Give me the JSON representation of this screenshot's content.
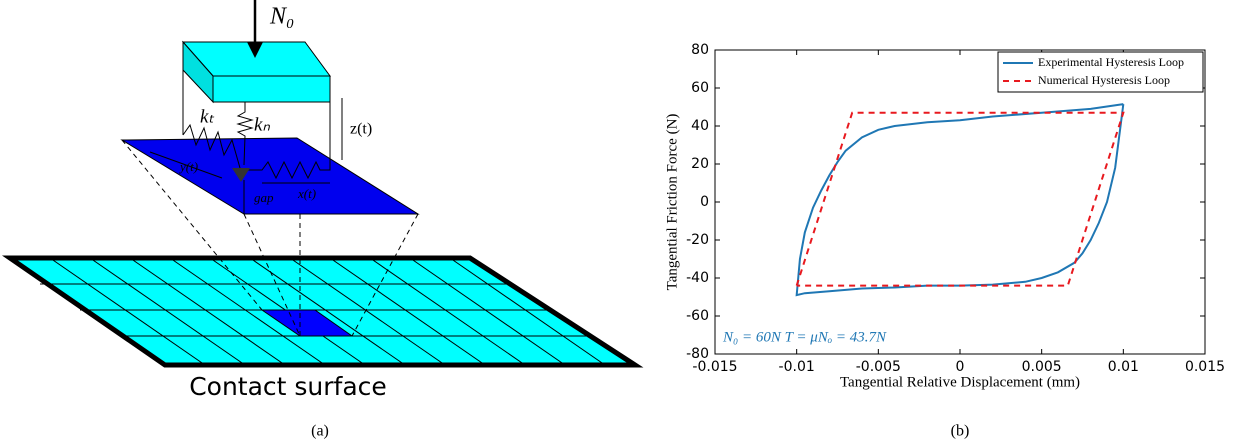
{
  "diagram": {
    "force_label": "N₀",
    "kt_label": "kₜ",
    "kn_label": "kₙ",
    "z_label": "z(t)",
    "y_label": "y(t)",
    "x_label": "x(t)",
    "gap_label": "gap",
    "surface_label": "Contact surface"
  },
  "captions": [
    "(a)",
    "(b)"
  ],
  "chart_data": {
    "type": "line",
    "xlabel": "Tangential Relative Displacement (mm)",
    "ylabel": "Tangential Friction Force (N)",
    "annotation": "N₀ = 60N  T = μNₒ = 43.7N",
    "xlim": [
      -0.015,
      0.015
    ],
    "xticks": [
      -0.015,
      -0.01,
      -0.005,
      0,
      0.005,
      0.01,
      0.015
    ],
    "ylim": [
      -80,
      80
    ],
    "yticks": [
      -80,
      -60,
      -40,
      -20,
      0,
      20,
      40,
      60,
      80
    ],
    "legend": "upper right",
    "series": [
      {
        "name": "Experimental Hysteresis Loop",
        "color": "#1f77b4",
        "dash": false,
        "x": [
          0.01,
          0.008,
          0.005,
          0.002,
          0,
          -0.002,
          -0.004,
          -0.005,
          -0.006,
          -0.007,
          -0.0075,
          -0.008,
          -0.0085,
          -0.009,
          -0.0095,
          -0.0098,
          -0.01,
          -0.0095,
          -0.008,
          -0.006,
          -0.004,
          -0.002,
          0,
          0.002,
          0.004,
          0.005,
          0.006,
          0.007,
          0.0075,
          0.008,
          0.0085,
          0.009,
          0.0095,
          0.01
        ],
        "values": [
          51.5,
          49,
          47,
          45,
          43,
          42,
          40,
          38,
          34,
          27,
          21,
          14,
          6,
          -3,
          -16,
          -30,
          -49,
          -48,
          -47,
          -45.5,
          -45,
          -44,
          -44,
          -43.5,
          -42,
          -40,
          -37,
          -32,
          -27,
          -20,
          -11,
          0,
          18,
          51.5
        ]
      },
      {
        "name": "Numerical Hysteresis Loop",
        "color": "#e8191f",
        "dash": true,
        "x": [
          -0.01,
          -0.0066,
          0.01,
          0.0066,
          -0.01
        ],
        "values": [
          -44,
          47,
          47,
          -44,
          -44
        ]
      }
    ]
  }
}
